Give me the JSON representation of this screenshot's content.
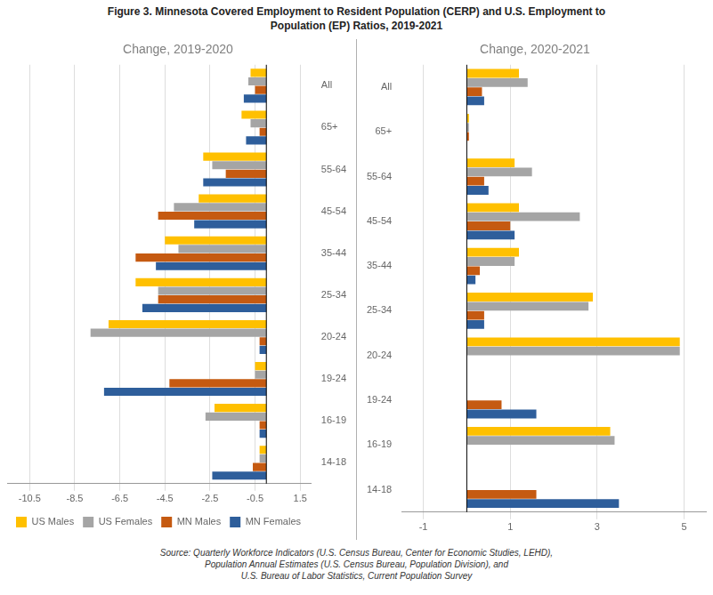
{
  "title": "Figure 3. Minnesota Covered Employment to Resident Population (CERP) and U.S. Employment to\nPopulation (EP) Ratios, 2019-2021",
  "annotations": [
    "Source: Quarterly Workforce Indicators (U.S. Census Bureau, Center for Economic Studies, LEHD),\nPopulation Annual Estimates (U.S. Census Bureau, Population Division), and\nU.S. Bureau of Labor Statistics, Current Population Survey"
  ],
  "chart_data": [
    {
      "type": "bar",
      "orientation": "horizontal",
      "subtitle": "Change, 2019-2020",
      "categories": [
        "All",
        "65+",
        "55-64",
        "45-54",
        "35-44",
        "25-34",
        "20-24",
        "19-24",
        "16-19",
        "14-18"
      ],
      "series": [
        {
          "name": "US Males",
          "color": "#FFC000",
          "values": [
            -0.7,
            -1.1,
            -2.8,
            -3.0,
            -4.5,
            -5.8,
            -7.0,
            -0.5,
            -2.3,
            -0.3
          ]
        },
        {
          "name": "US Females",
          "color": "#A5A5A5",
          "values": [
            -0.8,
            -0.7,
            -2.4,
            -4.1,
            -3.9,
            -4.8,
            -7.8,
            -0.5,
            -2.7,
            -0.3
          ]
        },
        {
          "name": "MN Males",
          "color": "#C55A11",
          "values": [
            -0.5,
            -0.3,
            -1.8,
            -4.8,
            -5.8,
            -4.8,
            -0.3,
            -4.3,
            -0.3,
            -0.6
          ]
        },
        {
          "name": "MN Females",
          "color": "#2E5E9B",
          "values": [
            -1.0,
            -0.9,
            -2.8,
            -3.2,
            -4.9,
            -5.5,
            -0.3,
            -7.2,
            -0.3,
            -2.4
          ]
        }
      ],
      "xlim": [
        -11.5,
        2.0
      ],
      "xticks": [
        -10.5,
        -8.5,
        -6.5,
        -4.5,
        -2.5,
        -0.5,
        1.5
      ],
      "grid": true,
      "legend": "lower left"
    },
    {
      "type": "bar",
      "orientation": "horizontal",
      "subtitle": "Change, 2020-2021",
      "categories": [
        "All",
        "65+",
        "55-64",
        "45-54",
        "35-44",
        "25-34",
        "20-24",
        "19-24",
        "16-19",
        "14-18"
      ],
      "series": [
        {
          "name": "US Males",
          "color": "#FFC000",
          "values": [
            1.2,
            0.05,
            1.1,
            1.2,
            1.2,
            2.9,
            4.9,
            0.0,
            3.3,
            0.0
          ]
        },
        {
          "name": "US Females",
          "color": "#A5A5A5",
          "values": [
            1.4,
            0.05,
            1.5,
            2.6,
            1.1,
            2.8,
            4.9,
            0.0,
            3.4,
            0.0
          ]
        },
        {
          "name": "MN Males",
          "color": "#C55A11",
          "values": [
            0.35,
            0.05,
            0.4,
            1.0,
            0.3,
            0.4,
            0.0,
            0.8,
            0.0,
            1.6
          ]
        },
        {
          "name": "MN Females",
          "color": "#2E5E9B",
          "values": [
            0.4,
            0.0,
            0.5,
            1.1,
            0.2,
            0.4,
            0.0,
            1.6,
            0.0,
            3.5
          ]
        }
      ],
      "xlim": [
        -1.5,
        5.5
      ],
      "xticks": [
        -1,
        1,
        3,
        5
      ],
      "grid": true
    }
  ]
}
